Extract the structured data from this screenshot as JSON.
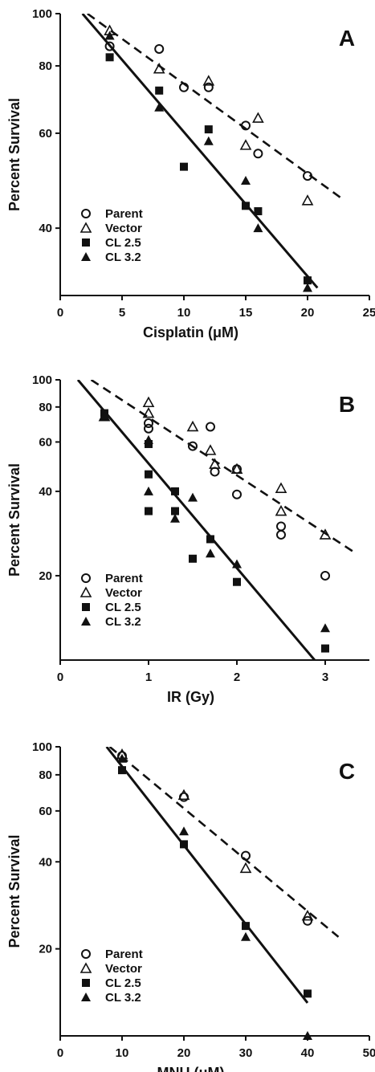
{
  "chart_data": [
    {
      "type": "scatter",
      "panel_label": "A",
      "xlabel": "Cisplatin (μM)",
      "ylabel": "Percent Survival",
      "yscale": "log",
      "xlim": [
        0,
        25
      ],
      "ylim": [
        30,
        100
      ],
      "xticks": [
        0,
        5,
        10,
        15,
        20,
        25
      ],
      "yticks": [
        40,
        60,
        80,
        100
      ],
      "legend_position": "bottom-left",
      "series": [
        {
          "name": "Parent",
          "marker": "open-circle",
          "points": [
            [
              4,
              87
            ],
            [
              8,
              86
            ],
            [
              10,
              73
            ],
            [
              12,
              73
            ],
            [
              15,
              62
            ],
            [
              16,
              55
            ],
            [
              20,
              50
            ]
          ]
        },
        {
          "name": "Vector",
          "marker": "open-triangle",
          "points": [
            [
              4,
              93
            ],
            [
              8,
              79
            ],
            [
              12,
              75
            ],
            [
              15,
              57
            ],
            [
              16,
              64
            ],
            [
              20,
              45
            ]
          ]
        },
        {
          "name": "CL 2.5",
          "marker": "filled-square",
          "points": [
            [
              4,
              83
            ],
            [
              8,
              72
            ],
            [
              10,
              52
            ],
            [
              12,
              61
            ],
            [
              15,
              44
            ],
            [
              16,
              43
            ],
            [
              20,
              32
            ]
          ]
        },
        {
          "name": "CL 3.2",
          "marker": "filled-triangle",
          "points": [
            [
              4,
              91
            ],
            [
              8,
              67
            ],
            [
              12,
              58
            ],
            [
              15,
              49
            ],
            [
              16,
              40
            ],
            [
              20,
              31
            ]
          ]
        }
      ],
      "fit_lines": [
        {
          "style": "dashed",
          "from": [
            2.2,
            100
          ],
          "to": [
            23,
            45
          ]
        },
        {
          "style": "solid",
          "from": [
            1.8,
            100
          ],
          "to": [
            20.8,
            31
          ]
        }
      ]
    },
    {
      "type": "scatter",
      "panel_label": "B",
      "xlabel": "IR (Gy)",
      "ylabel": "Percent Survival",
      "yscale": "log",
      "xlim": [
        0,
        3.5
      ],
      "ylim": [
        10,
        100
      ],
      "xticks": [
        0,
        1,
        2,
        3
      ],
      "yticks": [
        20,
        40,
        60,
        80,
        100
      ],
      "legend_position": "bottom-left",
      "series": [
        {
          "name": "Parent",
          "marker": "open-circle",
          "points": [
            [
              1,
              70
            ],
            [
              1,
              67
            ],
            [
              1.5,
              58
            ],
            [
              1.7,
              68
            ],
            [
              1.75,
              47
            ],
            [
              2,
              48
            ],
            [
              2,
              39
            ],
            [
              2.5,
              30
            ],
            [
              2.5,
              28
            ],
            [
              3,
              20
            ]
          ]
        },
        {
          "name": "Vector",
          "marker": "open-triangle",
          "points": [
            [
              0.5,
              74
            ],
            [
              1,
              83
            ],
            [
              1,
              76
            ],
            [
              1.5,
              68
            ],
            [
              1.7,
              56
            ],
            [
              1.75,
              50
            ],
            [
              2,
              48
            ],
            [
              2.5,
              41
            ],
            [
              2.5,
              34
            ],
            [
              3,
              28
            ]
          ]
        },
        {
          "name": "CL 2.5",
          "marker": "filled-square",
          "points": [
            [
              0.5,
              76
            ],
            [
              1,
              59
            ],
            [
              1,
              46
            ],
            [
              1,
              34
            ],
            [
              1.3,
              40
            ],
            [
              1.3,
              34
            ],
            [
              1.5,
              23
            ],
            [
              1.7,
              27
            ],
            [
              2,
              19
            ],
            [
              3,
              11
            ]
          ]
        },
        {
          "name": "CL 3.2",
          "marker": "filled-triangle",
          "points": [
            [
              0.5,
              74
            ],
            [
              1,
              61
            ],
            [
              1,
              40
            ],
            [
              1.3,
              32
            ],
            [
              1.5,
              38
            ],
            [
              1.7,
              24
            ],
            [
              2,
              22
            ],
            [
              3,
              13
            ]
          ]
        }
      ],
      "fit_lines": [
        {
          "style": "dashed",
          "from": [
            0.35,
            100
          ],
          "to": [
            3.35,
            24
          ]
        },
        {
          "style": "solid",
          "from": [
            0.2,
            100
          ],
          "to": [
            2.88,
            10
          ]
        }
      ]
    },
    {
      "type": "scatter",
      "panel_label": "C",
      "xlabel": "MNU (μM)",
      "ylabel": "Percent Survival",
      "yscale": "log",
      "xlim": [
        0,
        50
      ],
      "ylim": [
        10,
        100
      ],
      "xticks": [
        0,
        10,
        20,
        30,
        40,
        50
      ],
      "yticks": [
        20,
        40,
        60,
        80,
        100
      ],
      "legend_position": "bottom-left",
      "series": [
        {
          "name": "Parent",
          "marker": "open-circle",
          "points": [
            [
              10,
              93
            ],
            [
              20,
              67
            ],
            [
              30,
              42
            ],
            [
              40,
              25
            ]
          ]
        },
        {
          "name": "Vector",
          "marker": "open-triangle",
          "points": [
            [
              10,
              94
            ],
            [
              20,
              68
            ],
            [
              30,
              38
            ],
            [
              40,
              26
            ]
          ]
        },
        {
          "name": "CL 2.5",
          "marker": "filled-square",
          "points": [
            [
              10,
              83
            ],
            [
              20,
              46
            ],
            [
              30,
              24
            ],
            [
              40,
              14
            ]
          ]
        },
        {
          "name": "CL 3.2",
          "marker": "filled-triangle",
          "points": [
            [
              10,
              91
            ],
            [
              20,
              51
            ],
            [
              30,
              22
            ],
            [
              40,
              10
            ]
          ]
        }
      ],
      "fit_lines": [
        {
          "style": "dashed",
          "from": [
            8,
            100
          ],
          "to": [
            45,
            22
          ]
        },
        {
          "style": "solid",
          "from": [
            7.5,
            100
          ],
          "to": [
            40,
            13
          ]
        }
      ]
    }
  ]
}
